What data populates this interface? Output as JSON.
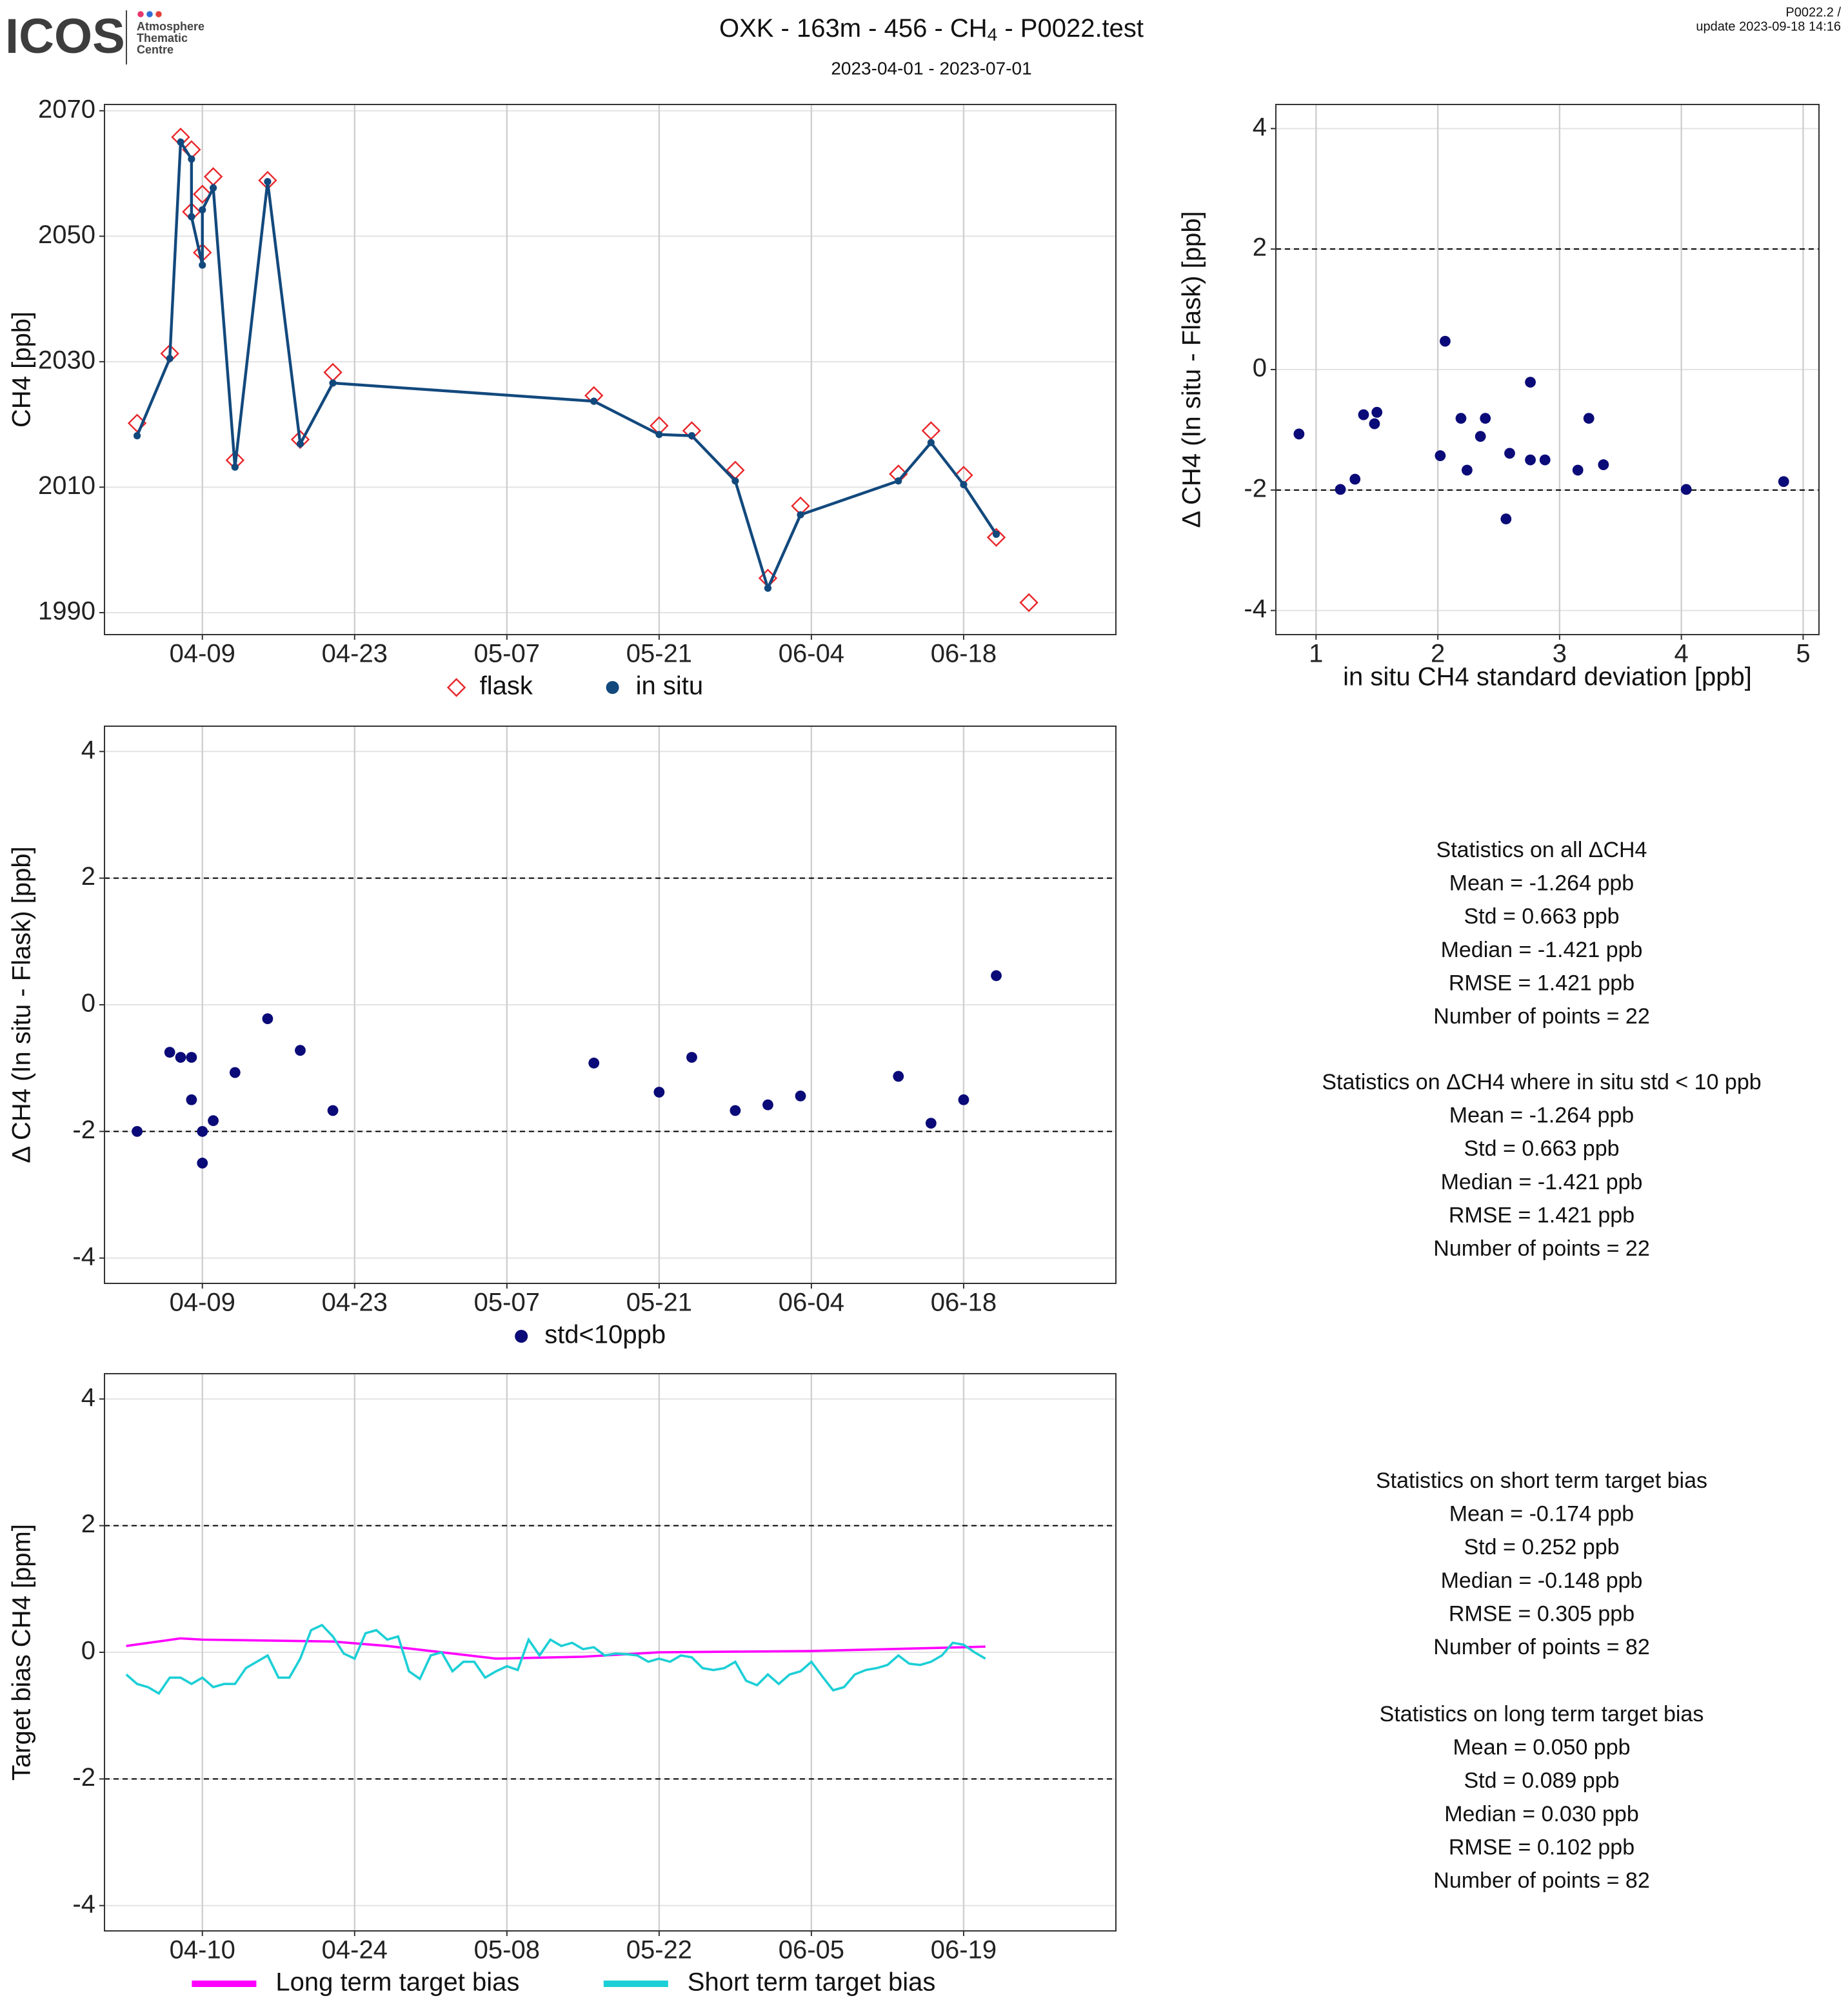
{
  "header": {
    "logo": {
      "word": "ICOS",
      "lines": [
        "Atmosphere",
        "Thematic",
        "Centre"
      ]
    },
    "title": [
      "OXK - 163m - 456 - CH",
      "4",
      " - P0022.test"
    ],
    "subtitle": "2023-04-01 - 2023-07-01",
    "corner": [
      "P0022.2 /",
      "update  2023-09-18 14:16"
    ]
  },
  "chart_data": [
    {
      "type": "line",
      "ylabel": "CH4 [ppb]",
      "xlim": [
        "03-31",
        "07-02"
      ],
      "ylim": [
        1986.5,
        2071
      ],
      "xticks": [
        "04-09",
        "04-23",
        "05-07",
        "05-21",
        "06-04",
        "06-18"
      ],
      "yticks": [
        1990,
        2010,
        2030,
        2050,
        2070
      ],
      "grid": true,
      "legend": "bottom",
      "series": [
        {
          "name": "flask",
          "color": "#e8262a",
          "marker": "diamond",
          "line": false,
          "x": [
            "04-03",
            "04-06",
            "04-07",
            "04-08",
            "04-08",
            "04-09",
            "04-09",
            "04-10",
            "04-12",
            "04-15",
            "04-18",
            "04-21",
            "05-15",
            "05-21",
            "05-24",
            "05-28",
            "05-31",
            "06-03",
            "06-12",
            "06-15",
            "06-18",
            "06-21",
            "06-24"
          ],
          "values": [
            2020.2,
            2031.3,
            2065.8,
            2063.8,
            2053.9,
            2047.4,
            2056.7,
            2059.5,
            2014.3,
            2058.9,
            2017.6,
            2028.3,
            2024.6,
            2019.8,
            2019.0,
            2012.7,
            1995.5,
            2007.0,
            2012.1,
            2019.0,
            2011.9,
            2002.0,
            1991.6
          ]
        },
        {
          "name": "in situ",
          "color": "#12497d",
          "marker": "circle",
          "line": true,
          "x": [
            "04-03",
            "04-06",
            "04-07",
            "04-08",
            "04-08",
            "04-09",
            "04-09",
            "04-10",
            "04-12",
            "04-15",
            "04-18",
            "04-21",
            "05-15",
            "05-21",
            "05-24",
            "05-28",
            "05-31",
            "06-03",
            "06-12",
            "06-15",
            "06-18",
            "06-21"
          ],
          "values": [
            2018.2,
            2030.5,
            2065.0,
            2062.3,
            2053.1,
            2045.4,
            2054.2,
            2057.7,
            2013.2,
            2058.7,
            2016.9,
            2026.6,
            2023.7,
            2018.4,
            2018.2,
            2011.0,
            1993.9,
            2005.6,
            2011.0,
            2017.1,
            2010.4,
            2002.5
          ]
        }
      ]
    },
    {
      "type": "scatter",
      "xlabel": "in situ CH4 standard deviation [ppb]",
      "ylabel": "Δ CH4 (In situ - Flask) [ppb]",
      "xlim": [
        0.67,
        5.13
      ],
      "ylim": [
        -4.4,
        4.4
      ],
      "xticks": [
        1,
        2,
        3,
        4,
        5
      ],
      "yticks": [
        -4,
        -2,
        0,
        2,
        4
      ],
      "reference_lines": [
        2,
        -2
      ],
      "grid": true,
      "color": "#0a0a78",
      "x": [
        0.86,
        1.2,
        1.32,
        1.39,
        1.48,
        1.5,
        2.02,
        2.06,
        2.19,
        2.24,
        2.35,
        2.39,
        2.56,
        2.59,
        2.76,
        2.76,
        2.88,
        3.15,
        3.24,
        3.36,
        4.04,
        4.84
      ],
      "values": [
        -1.07,
        -1.99,
        -1.82,
        -0.75,
        -0.9,
        -0.71,
        -1.43,
        0.47,
        -0.81,
        -1.67,
        -1.11,
        -0.81,
        -2.48,
        -1.39,
        -0.21,
        -1.5,
        -1.5,
        -1.67,
        -0.81,
        -1.58,
        -1.99,
        -1.86
      ]
    },
    {
      "type": "scatter",
      "ylabel": "Δ CH4 (In situ - Flask) [ppb]",
      "xlim": [
        "03-31",
        "07-02"
      ],
      "ylim": [
        -4.4,
        4.4
      ],
      "xticks": [
        "04-09",
        "04-23",
        "05-07",
        "05-21",
        "06-04",
        "06-18"
      ],
      "yticks": [
        -4,
        -2,
        0,
        2,
        4
      ],
      "reference_lines": [
        2,
        -2
      ],
      "grid": true,
      "legend": "bottom",
      "series": [
        {
          "name": "std<10ppb",
          "color": "#0a0a78",
          "marker": "circle",
          "line": false,
          "x": [
            "04-03",
            "04-06",
            "04-07",
            "04-08",
            "04-08",
            "04-09",
            "04-09",
            "04-10",
            "04-12",
            "04-15",
            "04-18",
            "04-21",
            "05-15",
            "05-21",
            "05-24",
            "05-28",
            "05-31",
            "06-03",
            "06-12",
            "06-15",
            "06-18",
            "06-21"
          ],
          "values": [
            -2.0,
            -0.75,
            -0.83,
            -1.5,
            -0.83,
            -2.0,
            -2.5,
            -1.83,
            -1.07,
            -0.22,
            -0.72,
            -1.67,
            -0.92,
            -1.38,
            -0.83,
            -1.67,
            -1.58,
            -1.44,
            -1.13,
            -1.87,
            -1.5,
            0.46
          ]
        }
      ]
    },
    {
      "type": "line",
      "ylabel": "Target bias CH4 [ppm]",
      "xlim": [
        "04-01",
        "07-03"
      ],
      "ylim": [
        -4.4,
        4.4
      ],
      "xticks": [
        "04-10",
        "04-24",
        "05-08",
        "05-22",
        "06-05",
        "06-19"
      ],
      "yticks": [
        -4,
        -2,
        0,
        2,
        4
      ],
      "reference_lines": [
        2,
        -2
      ],
      "grid": true,
      "legend": "bottom",
      "series": [
        {
          "name": "Long term target bias",
          "color": "#ff00ff",
          "line": true,
          "x": [
            "04-03",
            "04-08",
            "04-10",
            "04-22",
            "04-27",
            "05-07",
            "05-15",
            "05-22",
            "06-05",
            "06-19",
            "06-21"
          ],
          "values": [
            0.1,
            0.22,
            0.2,
            0.17,
            0.1,
            -0.1,
            -0.07,
            0.0,
            0.02,
            0.08,
            0.09
          ]
        },
        {
          "name": "Short term target bias",
          "color": "#1ccfd6",
          "line": true,
          "x": [
            "04-03",
            "04-04",
            "04-05",
            "04-06",
            "04-07",
            "04-08",
            "04-09",
            "04-10",
            "04-11",
            "04-12",
            "04-13",
            "04-14",
            "04-15",
            "04-16",
            "04-17",
            "04-18",
            "04-19",
            "04-20",
            "04-21",
            "04-22",
            "04-23",
            "04-24",
            "04-25",
            "04-26",
            "04-27",
            "04-28",
            "04-29",
            "04-30",
            "05-01",
            "05-02",
            "05-03",
            "05-04",
            "05-05",
            "05-06",
            "05-07",
            "05-08",
            "05-09",
            "05-10",
            "05-11",
            "05-12",
            "05-13",
            "05-14",
            "05-15",
            "05-16",
            "05-17",
            "05-18",
            "05-19",
            "05-20",
            "05-21",
            "05-22",
            "05-23",
            "05-24",
            "05-25",
            "05-26",
            "05-27",
            "05-28",
            "05-29",
            "05-30",
            "05-31",
            "06-01",
            "06-02",
            "06-03",
            "06-04",
            "06-05",
            "06-06",
            "06-07",
            "06-08",
            "06-09",
            "06-10",
            "06-11",
            "06-12",
            "06-13",
            "06-14",
            "06-15",
            "06-16",
            "06-17",
            "06-18",
            "06-19",
            "06-20",
            "06-21"
          ],
          "values": [
            -0.35,
            -0.5,
            -0.55,
            -0.65,
            -0.4,
            -0.4,
            -0.5,
            -0.4,
            -0.55,
            -0.5,
            -0.5,
            -0.25,
            -0.15,
            -0.05,
            -0.4,
            -0.4,
            -0.1,
            0.35,
            0.43,
            0.25,
            -0.02,
            -0.1,
            0.3,
            0.35,
            0.2,
            0.25,
            -0.3,
            -0.42,
            -0.05,
            0.0,
            -0.3,
            -0.15,
            -0.15,
            -0.4,
            -0.3,
            -0.22,
            -0.28,
            0.2,
            -0.05,
            0.2,
            0.1,
            0.15,
            0.05,
            0.08,
            -0.05,
            -0.02,
            -0.03,
            -0.05,
            -0.15,
            -0.1,
            -0.15,
            -0.05,
            -0.08,
            -0.25,
            -0.28,
            -0.25,
            -0.15,
            -0.45,
            -0.52,
            -0.35,
            -0.5,
            -0.35,
            -0.3,
            -0.15,
            -0.38,
            -0.6,
            -0.55,
            -0.35,
            -0.28,
            -0.25,
            -0.2,
            -0.05,
            -0.18,
            -0.2,
            -0.15,
            -0.05,
            0.15,
            0.12,
            0.0,
            -0.1
          ]
        }
      ]
    }
  ],
  "stats": [
    {
      "title": "Statistics on all ΔCH4",
      "lines": [
        "Mean =  -1.264 ppb",
        "Std =  0.663 ppb",
        "Median =  -1.421 ppb",
        "RMSE =  1.421 ppb",
        "Number of points =  22"
      ]
    },
    {
      "title": "Statistics on ΔCH4 where in situ std < 10 ppb",
      "lines": [
        "Mean =  -1.264 ppb",
        "Std =  0.663 ppb",
        "Median =  -1.421 ppb",
        "RMSE =  1.421 ppb",
        "Number of points =  22"
      ]
    },
    {
      "title": "Statistics on short term target bias",
      "lines": [
        "Mean =  -0.174 ppb",
        "Std =  0.252 ppb",
        "Median =  -0.148 ppb",
        "RMSE =  0.305 ppb",
        "Number of points =  82"
      ]
    },
    {
      "title": "Statistics on long term target bias",
      "lines": [
        "Mean =  0.050 ppb",
        "Std =  0.089 ppb",
        "Median =  0.030 ppb",
        "RMSE =  0.102 ppb",
        "Number of points =  82"
      ]
    }
  ]
}
